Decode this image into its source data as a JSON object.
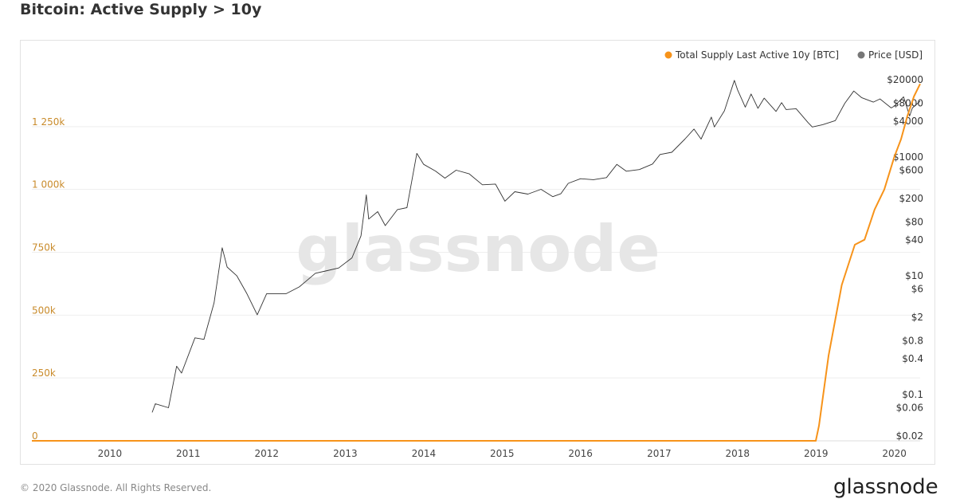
{
  "title": "Bitcoin: Active Supply > 10y",
  "footer": {
    "copyright": "© 2020 Glassnode. All Rights Reserved.",
    "logo": "glassnode"
  },
  "watermark": "glassnode",
  "colors": {
    "supply": "#f7931a",
    "price": "#333333",
    "price_legend": "#777777",
    "left_axis": "#c98b2b",
    "grid": "#eeeeee"
  },
  "chart_data": {
    "type": "line",
    "title": "Bitcoin: Active Supply > 10y",
    "legend_position": "top-right",
    "grid": true,
    "x_ticks": [
      "2010",
      "2011",
      "2012",
      "2013",
      "2014",
      "2015",
      "2016",
      "2017",
      "2018",
      "2019",
      "2020"
    ],
    "x_range": [
      "2009-01-03",
      "2020-04-30"
    ],
    "y_left": {
      "ticks": [
        "0",
        "250k",
        "500k",
        "750k",
        "1 000k",
        "1 250k"
      ],
      "range": [
        0,
        1500000
      ]
    },
    "y_right": {
      "ticks": [
        "$0.02",
        "$0.06",
        "$0.1",
        "$0.4",
        "$0.8",
        "$2",
        "$6",
        "$10",
        "$40",
        "$80",
        "$200",
        "$600",
        "$1000",
        "$4000",
        "$8000",
        "$20000"
      ],
      "scale": "log",
      "range": [
        0.02,
        20000
      ]
    },
    "series": [
      {
        "name": "Total Supply Last Active 10y [BTC]",
        "axis": "left",
        "x": [
          "2009-01-03",
          "2018-12-31",
          "2019-01-15",
          "2019-03-01",
          "2019-05-01",
          "2019-07-01",
          "2019-08-15",
          "2019-10-01",
          "2019-11-15",
          "2020-01-01",
          "2020-02-01",
          "2020-03-01",
          "2020-04-01",
          "2020-04-30"
        ],
        "y": [
          0,
          0,
          60000,
          340000,
          620000,
          780000,
          800000,
          920000,
          1000000,
          1130000,
          1200000,
          1290000,
          1370000,
          1420000
        ]
      },
      {
        "name": "Price [USD]",
        "axis": "right",
        "x": [
          "2010-07-17",
          "2010-08-01",
          "2010-10-01",
          "2010-11-08",
          "2010-12-01",
          "2011-02-01",
          "2011-03-15",
          "2011-05-01",
          "2011-06-08",
          "2011-07-01",
          "2011-08-15",
          "2011-10-01",
          "2011-11-18",
          "2012-01-01",
          "2012-04-01",
          "2012-06-01",
          "2012-08-15",
          "2012-10-01",
          "2012-12-01",
          "2013-02-01",
          "2013-03-15",
          "2013-04-09",
          "2013-04-20",
          "2013-06-01",
          "2013-07-06",
          "2013-09-01",
          "2013-10-15",
          "2013-11-30",
          "2014-01-01",
          "2014-02-25",
          "2014-04-10",
          "2014-06-01",
          "2014-08-01",
          "2014-10-01",
          "2014-12-01",
          "2015-01-14",
          "2015-03-01",
          "2015-05-01",
          "2015-07-01",
          "2015-08-25",
          "2015-10-01",
          "2015-11-05",
          "2016-01-01",
          "2016-03-01",
          "2016-05-01",
          "2016-06-18",
          "2016-08-01",
          "2016-10-01",
          "2016-12-01",
          "2017-01-05",
          "2017-03-01",
          "2017-05-01",
          "2017-06-12",
          "2017-07-15",
          "2017-09-01",
          "2017-09-15",
          "2017-11-01",
          "2017-12-17",
          "2018-01-01",
          "2018-02-06",
          "2018-03-05",
          "2018-04-06",
          "2018-05-05",
          "2018-06-29",
          "2018-07-25",
          "2018-08-15",
          "2018-10-01",
          "2018-11-25",
          "2018-12-15",
          "2019-02-01",
          "2019-04-01",
          "2019-05-15",
          "2019-06-26",
          "2019-08-01",
          "2019-09-25",
          "2019-10-26",
          "2019-12-17",
          "2020-01-01",
          "2020-02-13",
          "2020-03-12",
          "2020-03-25",
          "2020-04-30"
        ],
        "y": [
          0.05,
          0.07,
          0.06,
          0.3,
          0.23,
          0.9,
          0.85,
          3.5,
          29.6,
          14,
          10,
          5,
          2.2,
          5,
          5,
          6.5,
          11,
          12,
          13.5,
          20,
          47,
          230,
          90,
          120,
          70,
          130,
          140,
          1150,
          750,
          580,
          440,
          600,
          520,
          340,
          350,
          180,
          260,
          237,
          285,
          215,
          240,
          360,
          430,
          415,
          450,
          750,
          575,
          615,
          760,
          1100,
          1200,
          2000,
          2950,
          2000,
          4700,
          3200,
          6000,
          19500,
          13500,
          6900,
          11500,
          6600,
          9800,
          5850,
          8200,
          6300,
          6500,
          3800,
          3200,
          3500,
          4100,
          8000,
          12900,
          10000,
          8400,
          9500,
          6700,
          7200,
          10300,
          4900,
          6700,
          8700
        ]
      }
    ]
  }
}
